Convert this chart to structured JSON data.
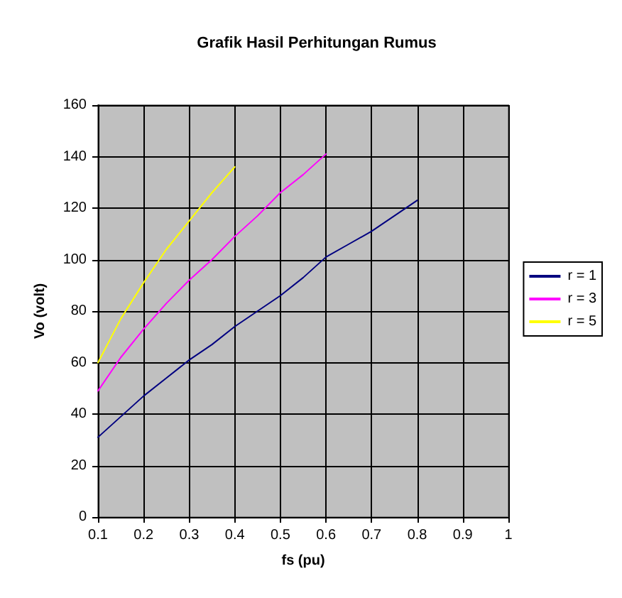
{
  "chart_data": {
    "type": "line",
    "title": "Grafik Hasil Perhitungan Rumus",
    "xlabel": "fs (pu)",
    "ylabel": "Vo (volt)",
    "xlim": [
      0.1,
      1
    ],
    "xticks": [
      0.1,
      0.2,
      0.3,
      0.4,
      0.5,
      0.6,
      0.7,
      0.8,
      0.9,
      1
    ],
    "ylim": [
      0,
      160
    ],
    "yticks": [
      0,
      20,
      40,
      60,
      80,
      100,
      120,
      140,
      160
    ],
    "grid": true,
    "legend": "right",
    "marker": "none",
    "line_style": "solid",
    "series": [
      {
        "name": "r = 1",
        "color": "#000080",
        "x": [
          0.1,
          0.15,
          0.2,
          0.25,
          0.3,
          0.35,
          0.4,
          0.45,
          0.5,
          0.55,
          0.6,
          0.65,
          0.7,
          0.75,
          0.8
        ],
        "values": [
          31,
          39,
          47,
          54,
          61,
          67,
          74,
          80,
          86,
          93,
          101,
          106,
          111,
          117,
          123
        ]
      },
      {
        "name": "r = 3",
        "color": "#ff00ff",
        "x": [
          0.1,
          0.15,
          0.2,
          0.25,
          0.3,
          0.35,
          0.4,
          0.45,
          0.5,
          0.55,
          0.6
        ],
        "values": [
          49,
          62,
          73,
          83,
          92,
          100,
          109,
          117,
          126,
          133,
          141
        ]
      },
      {
        "name": "r = 5",
        "color": "#ffff00",
        "x": [
          0.1,
          0.15,
          0.2,
          0.25,
          0.3,
          0.35,
          0.4
        ],
        "values": [
          60,
          77,
          91,
          104,
          115,
          126,
          136
        ]
      }
    ]
  }
}
